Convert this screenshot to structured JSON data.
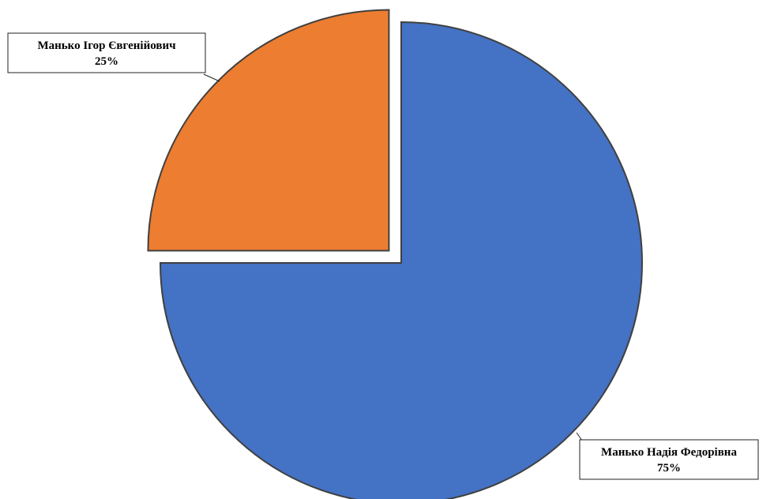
{
  "chart_data": {
    "type": "pie",
    "title": "",
    "slices": [
      {
        "name": "Манько Надія Федорівна",
        "value": 75,
        "percent_label": "75%",
        "color": "#4472C4"
      },
      {
        "name": "Манько Ігор Євгенійович",
        "value": 25,
        "percent_label": "25%",
        "color": "#ED7D31"
      }
    ],
    "legend": "none",
    "start_angle": "12 o'clock, clockwise",
    "exploded": true
  }
}
